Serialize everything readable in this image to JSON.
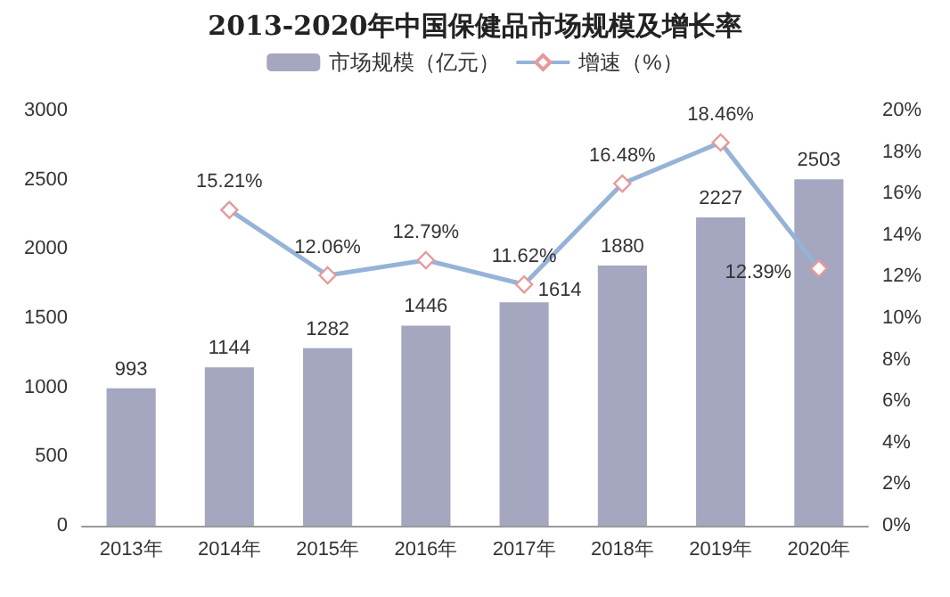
{
  "chart_data": {
    "type": "bar",
    "title": "2013-2020年中国保健品市场规模及增长率",
    "categories": [
      "2013年",
      "2014年",
      "2015年",
      "2016年",
      "2017年",
      "2018年",
      "2019年",
      "2020年"
    ],
    "series": [
      {
        "name": "市场规模（亿元）",
        "color": "#a5a6c0",
        "values": [
          993,
          1144,
          1282,
          1446,
          1614,
          1880,
          2227,
          2503
        ],
        "value_labels": [
          "993",
          "1144",
          "1282",
          "1446",
          "1614",
          "1880",
          "2227",
          "2503"
        ]
      },
      {
        "name": "增速（%）",
        "type": "line",
        "axis": "y2",
        "color": "#95b3d7",
        "marker": "diamond",
        "values": [
          null,
          15.21,
          12.06,
          12.79,
          11.62,
          16.48,
          18.46,
          12.39
        ],
        "value_labels": [
          null,
          "15.21%",
          "12.06%",
          "12.79%",
          "11.62%",
          "16.48%",
          "18.46%",
          "12.39%"
        ]
      }
    ],
    "ylim": [
      0,
      3000
    ],
    "yticks": [
      0,
      500,
      1000,
      1500,
      2000,
      2500,
      3000
    ],
    "y2lim": [
      0,
      20
    ],
    "y2ticks": [
      {
        "value": 0,
        "label": "0%"
      },
      {
        "value": 2,
        "label": "2%"
      },
      {
        "value": 4,
        "label": "4%"
      },
      {
        "value": 6,
        "label": "6%"
      },
      {
        "value": 8,
        "label": "8%"
      },
      {
        "value": 10,
        "label": "10%"
      },
      {
        "value": 12,
        "label": "12%"
      },
      {
        "value": 14,
        "label": "14%"
      },
      {
        "value": 16,
        "label": "16%"
      },
      {
        "value": 18,
        "label": "18%"
      },
      {
        "value": 20,
        "label": "20%"
      }
    ],
    "grid": false,
    "legend": "top"
  }
}
